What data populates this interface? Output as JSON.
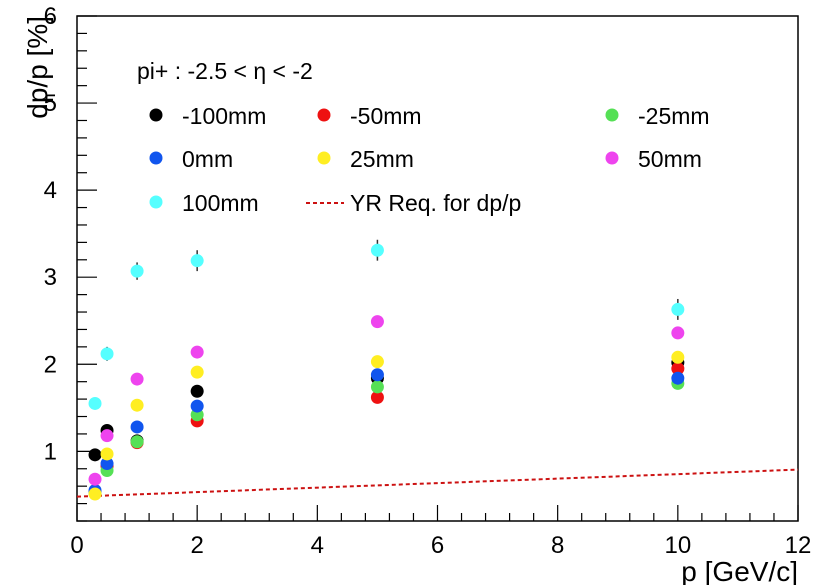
{
  "chart_data": {
    "type": "scatter",
    "title": "",
    "header_text": "pi+ : -2.5 < η < -2",
    "xlabel": "p [GeV/c]",
    "ylabel": "dp/p [%]",
    "xlim": [
      0,
      12
    ],
    "ylim": [
      0.2,
      6
    ],
    "x_ticks": [
      "0",
      "2",
      "4",
      "6",
      "8",
      "10",
      "12"
    ],
    "y_ticks": [
      "1",
      "2",
      "3",
      "4",
      "5",
      "6"
    ],
    "grid": false,
    "legend_position": "top",
    "series": [
      {
        "name": "-100mm",
        "color": "#000000",
        "x": [
          0.3,
          0.5,
          1,
          2,
          5,
          10
        ],
        "y": [
          0.96,
          1.24,
          1.12,
          1.69,
          1.84,
          2.02
        ]
      },
      {
        "name": "-50mm",
        "color": "#ee1111",
        "x": [
          0.3,
          0.5,
          1,
          2,
          5,
          10
        ],
        "y": [
          0.53,
          0.83,
          1.1,
          1.35,
          1.62,
          1.95
        ]
      },
      {
        "name": "-25mm",
        "color": "#55e055",
        "x": [
          0.3,
          0.5,
          1,
          2,
          5,
          10
        ],
        "y": [
          0.52,
          0.78,
          1.11,
          1.42,
          1.74,
          1.78
        ]
      },
      {
        "name": "0mm",
        "color": "#1155ee",
        "x": [
          0.3,
          0.5,
          1,
          2,
          5,
          10
        ],
        "y": [
          0.55,
          0.86,
          1.28,
          1.52,
          1.88,
          1.84
        ]
      },
      {
        "name": "25mm",
        "color": "#ffee22",
        "x": [
          0.3,
          0.5,
          1,
          2,
          5,
          10
        ],
        "y": [
          0.51,
          0.97,
          1.53,
          1.91,
          2.03,
          2.08
        ]
      },
      {
        "name": "50mm",
        "color": "#ee44ee",
        "x": [
          0.3,
          0.5,
          1,
          2,
          5,
          10
        ],
        "y": [
          0.68,
          1.18,
          1.83,
          2.14,
          2.49,
          2.36
        ]
      },
      {
        "name": "100mm",
        "color": "#55ffff",
        "x": [
          0.3,
          0.5,
          1,
          2,
          5,
          10
        ],
        "y": [
          1.55,
          2.12,
          3.07,
          3.19,
          3.31,
          2.63
        ],
        "yerr": [
          0.05,
          0.08,
          0.1,
          0.12,
          0.12,
          0.12
        ]
      }
    ],
    "requirement": {
      "name": "YR Req. for dp/p",
      "color": "#cc1111",
      "style": "dashed",
      "x": [
        0,
        12
      ],
      "y": [
        0.48,
        0.79
      ]
    }
  }
}
